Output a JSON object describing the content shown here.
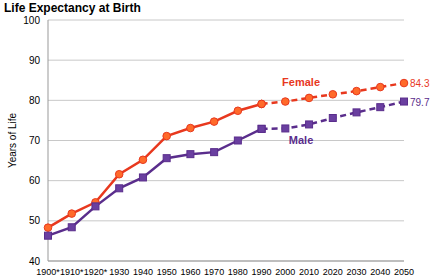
{
  "chart_data": {
    "type": "line",
    "title": "Life Expectancy at Birth",
    "y_label": "Years of Life",
    "categories": [
      "1900*",
      "1910*",
      "1920*",
      "1930",
      "1940",
      "1950",
      "1960",
      "1970",
      "1980",
      "1990",
      "2000",
      "2010",
      "2020",
      "2030",
      "2040",
      "2050"
    ],
    "projected_from": "1990",
    "series": [
      {
        "name": "Female",
        "color": "#e8381e",
        "marker": "circle",
        "values": [
          48.3,
          51.8,
          54.6,
          61.6,
          65.2,
          71.1,
          73.1,
          74.7,
          77.4,
          79.1,
          79.7,
          80.6,
          81.5,
          82.3,
          83.3,
          84.3
        ]
      },
      {
        "name": "Male",
        "color": "#5a2d8c",
        "marker": "square",
        "values": [
          46.3,
          48.4,
          53.6,
          58.1,
          60.8,
          65.6,
          66.6,
          67.1,
          70.0,
          72.9,
          73.0,
          74.0,
          75.6,
          77.0,
          78.3,
          79.7
        ]
      }
    ],
    "ylim": [
      40,
      100
    ],
    "yticks": [
      40,
      50,
      60,
      70,
      80,
      90,
      100
    ],
    "grid": true
  }
}
